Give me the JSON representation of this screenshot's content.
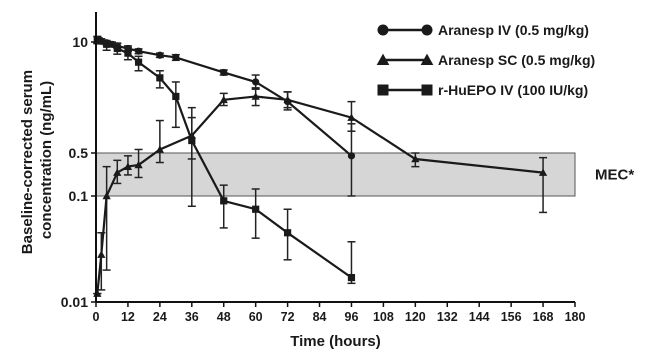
{
  "chart_data": {
    "type": "line",
    "title": "",
    "xlabel": "Time (hours)",
    "ylabel_lines": [
      "Baseline-corrected serum",
      "concentration (ng/mL)"
    ],
    "xlim": [
      0,
      180
    ],
    "xticks": [
      0,
      12,
      24,
      36,
      48,
      60,
      72,
      84,
      96,
      108,
      120,
      132,
      144,
      156,
      168,
      180
    ],
    "xtick_labels": [
      "0",
      "12",
      "24",
      "36",
      "48",
      "60",
      "72",
      "84",
      "96",
      "108",
      "120",
      "132",
      "144",
      "156",
      "168",
      "180"
    ],
    "yscale": "piecewise",
    "yticks": [
      0.01,
      0.1,
      0.5,
      10
    ],
    "ytick_labels": [
      "0.01",
      "0.1",
      "0.5",
      "10"
    ],
    "legend_position": "top-right",
    "band": {
      "label": "MEC*",
      "from": 0.1,
      "to": 0.5,
      "color": "#d6d6d6"
    },
    "series": [
      {
        "name": "Aranesp IV (0.5 mg/kg)",
        "marker": "circle",
        "points": [
          {
            "x": 0.5,
            "y": 10.6,
            "eu": 11.6,
            "el": 9.6
          },
          {
            "x": 1,
            "y": 10.4,
            "eu": 11.2,
            "el": 9.6
          },
          {
            "x": 2,
            "y": 10.2,
            "eu": 10.9,
            "el": 9.5
          },
          {
            "x": 4,
            "y": 9.8,
            "eu": 10.4,
            "el": 9.2
          },
          {
            "x": 6,
            "y": 9.4,
            "eu": 10.0,
            "el": 8.8
          },
          {
            "x": 8,
            "y": 9.0,
            "eu": 9.7,
            "el": 8.4
          },
          {
            "x": 12,
            "y": 8.4,
            "eu": 9.0,
            "el": 7.8
          },
          {
            "x": 16,
            "y": 7.8,
            "eu": 8.3,
            "el": 7.3
          },
          {
            "x": 24,
            "y": 7.0,
            "eu": 7.4,
            "el": 6.6
          },
          {
            "x": 30,
            "y": 6.6,
            "eu": 7.1,
            "el": 6.1
          },
          {
            "x": 48,
            "y": 4.4,
            "eu": 4.7,
            "el": 4.1
          },
          {
            "x": 60,
            "y": 3.4,
            "eu": 4.1,
            "el": 2.9
          },
          {
            "x": 72,
            "y": 2.0,
            "eu": 2.6,
            "el": 1.6
          },
          {
            "x": 96,
            "y": 0.45,
            "eu": 1.1,
            "el": 0.1
          }
        ]
      },
      {
        "name": "Aranesp SC (0.5 mg/kg)",
        "marker": "triangle",
        "points": [
          {
            "x": 0.5,
            "y": 0.012,
            "eu": 0.012,
            "el": 0.012
          },
          {
            "x": 2,
            "y": 0.028,
            "eu": 0.045,
            "el": 0.013
          },
          {
            "x": 4,
            "y": 0.1,
            "eu": 0.3,
            "el": 0.02
          },
          {
            "x": 8,
            "y": 0.24,
            "eu": 0.38,
            "el": 0.16
          },
          {
            "x": 12,
            "y": 0.3,
            "eu": 0.45,
            "el": 0.22
          },
          {
            "x": 16,
            "y": 0.32,
            "eu": 0.55,
            "el": 0.2
          },
          {
            "x": 24,
            "y": 0.55,
            "eu": 1.2,
            "el": 0.35
          },
          {
            "x": 36,
            "y": 0.8,
            "eu": 1.7,
            "el": 0.4
          },
          {
            "x": 48,
            "y": 2.1,
            "eu": 2.5,
            "el": 1.8
          },
          {
            "x": 60,
            "y": 2.3,
            "eu": 2.8,
            "el": 1.8
          },
          {
            "x": 72,
            "y": 2.1,
            "eu": 2.6,
            "el": 1.7
          },
          {
            "x": 96,
            "y": 1.3,
            "eu": 2.0,
            "el": 0.9
          },
          {
            "x": 120,
            "y": 0.4,
            "eu": 0.5,
            "el": 0.3
          },
          {
            "x": 168,
            "y": 0.24,
            "eu": 0.42,
            "el": 0.07
          }
        ]
      },
      {
        "name": "r-HuEPO IV (100 IU/kg)",
        "marker": "square",
        "points": [
          {
            "x": 0.5,
            "y": 10.6,
            "eu": 11.6,
            "el": 9.6
          },
          {
            "x": 4,
            "y": 9.4,
            "eu": 10.0,
            "el": 8.0
          },
          {
            "x": 8,
            "y": 8.4,
            "eu": 9.6,
            "el": 7.2
          },
          {
            "x": 12,
            "y": 7.4,
            "eu": 8.6,
            "el": 6.2
          },
          {
            "x": 16,
            "y": 5.8,
            "eu": 6.8,
            "el": 4.6
          },
          {
            "x": 24,
            "y": 3.8,
            "eu": 4.6,
            "el": 2.9
          },
          {
            "x": 30,
            "y": 2.3,
            "eu": 3.4,
            "el": 1.0
          },
          {
            "x": 36,
            "y": 0.7,
            "eu": 1.3,
            "el": 0.08
          },
          {
            "x": 48,
            "y": 0.09,
            "eu": 0.15,
            "el": 0.05
          },
          {
            "x": 60,
            "y": 0.075,
            "eu": 0.13,
            "el": 0.04
          },
          {
            "x": 72,
            "y": 0.045,
            "eu": 0.075,
            "el": 0.025
          },
          {
            "x": 96,
            "y": 0.017,
            "eu": 0.037,
            "el": 0.015
          }
        ]
      }
    ]
  }
}
